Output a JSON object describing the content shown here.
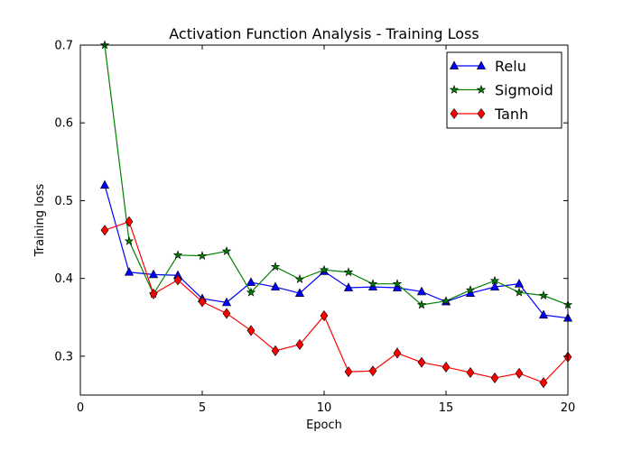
{
  "chart_data": {
    "type": "line",
    "title": "Activation Function Analysis - Training Loss",
    "xlabel": "Epoch",
    "ylabel": "Training loss",
    "xlim": [
      0,
      20
    ],
    "ylim": [
      0.25,
      0.7
    ],
    "xticks": [
      0,
      5,
      10,
      15,
      20
    ],
    "xtick_labels": [
      "0",
      "5",
      "10",
      "15",
      "20"
    ],
    "yticks": [
      0.3,
      0.4,
      0.5,
      0.6,
      0.7
    ],
    "ytick_labels": [
      "0.3",
      "0.4",
      "0.5",
      "0.6",
      "0.7"
    ],
    "grid": false,
    "legend_position": "top-right",
    "x": [
      1,
      2,
      3,
      4,
      5,
      6,
      7,
      8,
      9,
      10,
      11,
      12,
      13,
      14,
      15,
      16,
      17,
      18,
      19,
      20
    ],
    "series": [
      {
        "name": "Relu",
        "color": "#0000ff",
        "marker": "triangle",
        "values": [
          0.52,
          0.408,
          0.405,
          0.404,
          0.374,
          0.369,
          0.395,
          0.389,
          0.381,
          0.409,
          0.388,
          0.389,
          0.388,
          0.383,
          0.37,
          0.381,
          0.389,
          0.393,
          0.353,
          0.349
        ]
      },
      {
        "name": "Sigmoid",
        "color": "#008000",
        "marker": "star",
        "values": [
          0.7,
          0.448,
          0.38,
          0.43,
          0.429,
          0.435,
          0.382,
          0.415,
          0.399,
          0.411,
          0.408,
          0.393,
          0.393,
          0.366,
          0.371,
          0.385,
          0.397,
          0.382,
          0.378,
          0.366
        ]
      },
      {
        "name": "Tanh",
        "color": "#ff0000",
        "marker": "diamond",
        "values": [
          0.462,
          0.473,
          0.38,
          0.398,
          0.37,
          0.355,
          0.333,
          0.307,
          0.315,
          0.352,
          0.28,
          0.281,
          0.304,
          0.292,
          0.286,
          0.279,
          0.272,
          0.278,
          0.266,
          0.299
        ]
      }
    ]
  }
}
